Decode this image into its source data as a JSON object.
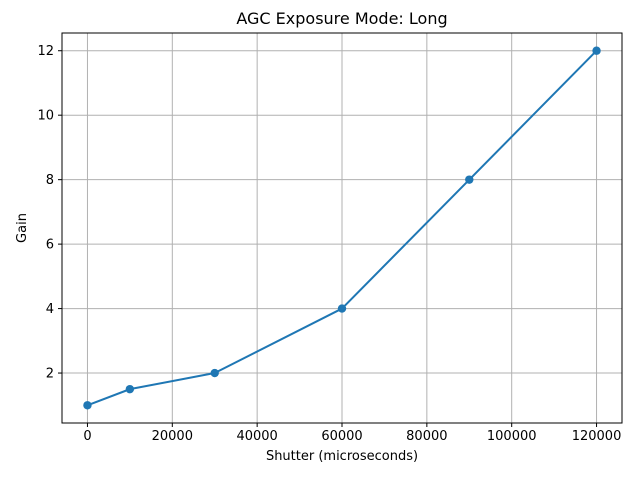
{
  "chart_data": {
    "type": "line",
    "title": "AGC Exposure Mode: Long",
    "xlabel": "Shutter (microseconds)",
    "ylabel": "Gain",
    "x": [
      0,
      10000,
      30000,
      60000,
      90000,
      120000
    ],
    "y": [
      1,
      1.5,
      2,
      4,
      8,
      12
    ],
    "xticks": [
      0,
      20000,
      40000,
      60000,
      80000,
      100000,
      120000
    ],
    "yticks": [
      2,
      4,
      6,
      8,
      10,
      12
    ],
    "xlim": [
      -6000,
      126000
    ],
    "ylim": [
      0.45,
      12.55
    ],
    "grid": true,
    "legend": "none",
    "line_color": "#1f77b4",
    "marker": "o",
    "grid_color": "#b0b0b0",
    "spine_color": "#000000",
    "background_color": "#ffffff"
  }
}
